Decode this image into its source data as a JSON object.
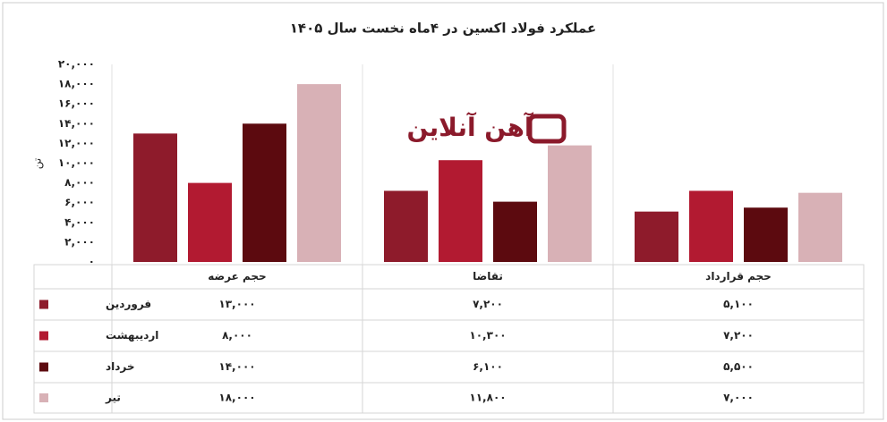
{
  "chart_data": {
    "type": "bar",
    "title": "عملکرد فولاد اکسین در ۴ماه نخست سال ۱۴۰۵",
    "y_label": "تن",
    "watermark": "آهن آنلاین",
    "categories": [
      "حجم عرضه",
      "تقاضا",
      "حجم قرارداد"
    ],
    "series": [
      {
        "name": "فروردین",
        "color": "#8e1b2b",
        "values": [
          13000,
          7200,
          5100
        ],
        "value_labels": [
          "۱۳,۰۰۰",
          "۷,۲۰۰",
          "۵,۱۰۰"
        ]
      },
      {
        "name": "اردیبهشت",
        "color": "#b21a31",
        "values": [
          8000,
          10300,
          7200
        ],
        "value_labels": [
          "۸,۰۰۰",
          "۱۰,۳۰۰",
          "۷,۲۰۰"
        ]
      },
      {
        "name": "خرداد",
        "color": "#5c0a0f",
        "values": [
          14000,
          6100,
          5500
        ],
        "value_labels": [
          "۱۴,۰۰۰",
          "۶,۱۰۰",
          "۵,۵۰۰"
        ]
      },
      {
        "name": "تیر",
        "color": "#d8b1b6",
        "values": [
          18000,
          11800,
          7000
        ],
        "value_labels": [
          "۱۸,۰۰۰",
          "۱۱,۸۰۰",
          "۷,۰۰۰"
        ]
      }
    ],
    "ylim": [
      0,
      20000
    ],
    "yticks": [
      {
        "value": 0,
        "label": "۰"
      },
      {
        "value": 2000,
        "label": "۲,۰۰۰"
      },
      {
        "value": 4000,
        "label": "۴,۰۰۰"
      },
      {
        "value": 6000,
        "label": "۶,۰۰۰"
      },
      {
        "value": 8000,
        "label": "۸,۰۰۰"
      },
      {
        "value": 10000,
        "label": "۱۰,۰۰۰"
      },
      {
        "value": 12000,
        "label": "۱۲,۰۰۰"
      },
      {
        "value": 14000,
        "label": "۱۴,۰۰۰"
      },
      {
        "value": 16000,
        "label": "۱۶,۰۰۰"
      },
      {
        "value": 18000,
        "label": "۱۸,۰۰۰"
      },
      {
        "value": 20000,
        "label": "۲۰,۰۰۰"
      }
    ],
    "grid": false
  }
}
